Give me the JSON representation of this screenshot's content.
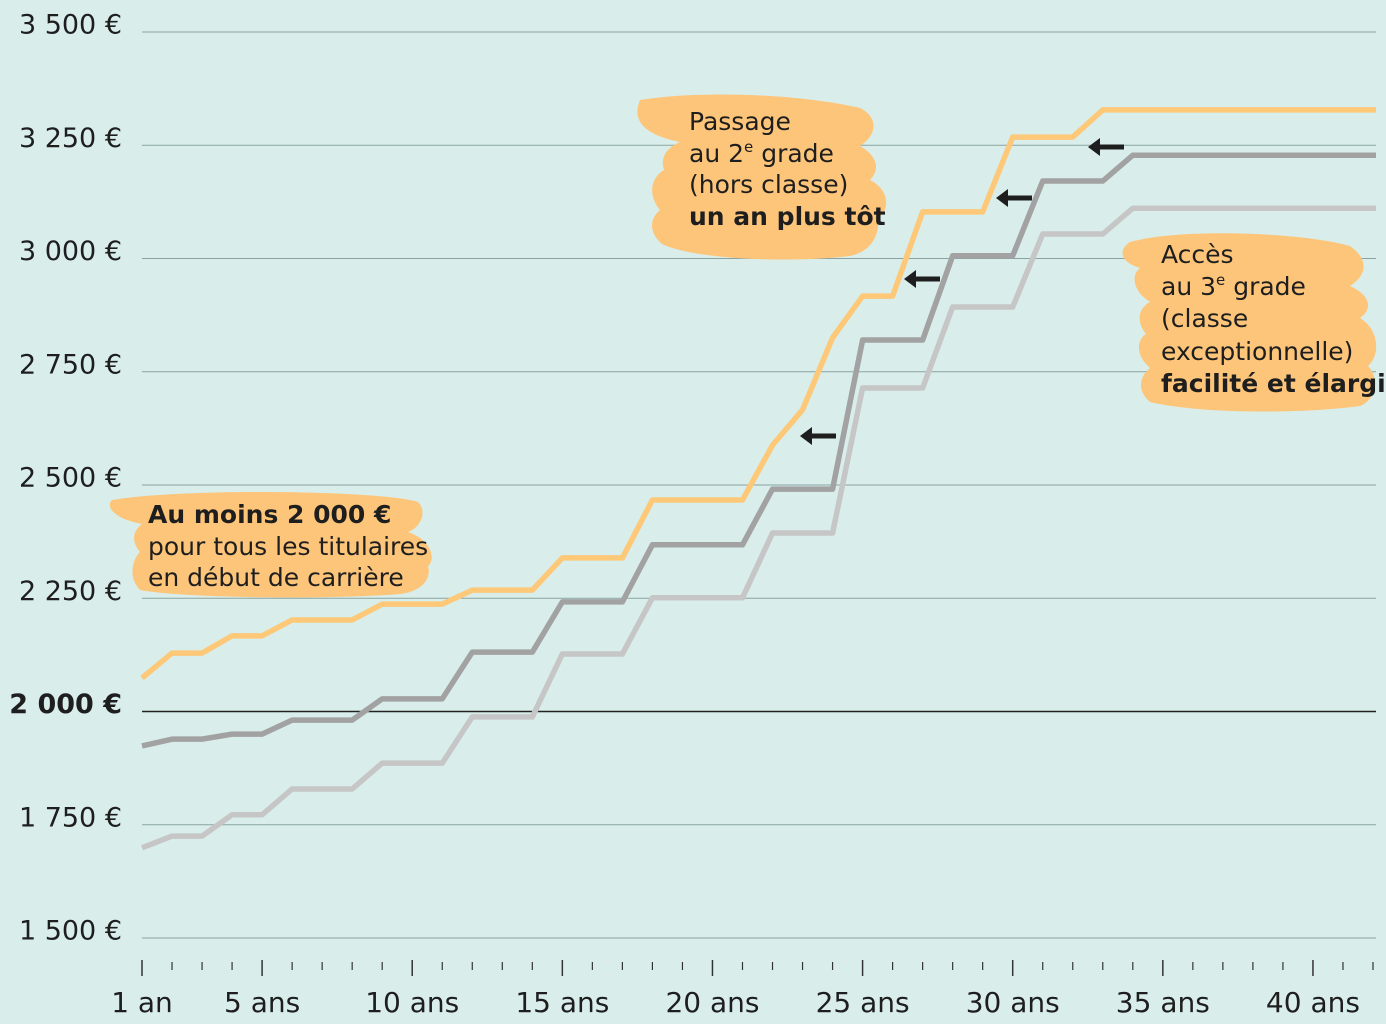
{
  "chart_data": {
    "type": "line",
    "ylim": [
      1500,
      3500
    ],
    "yticks": [
      {
        "value": 1500,
        "label": "1 500 €"
      },
      {
        "value": 1750,
        "label": "1 750 €"
      },
      {
        "value": 2000,
        "label": "2 000 €",
        "bold": true
      },
      {
        "value": 2250,
        "label": "2 250 €"
      },
      {
        "value": 2500,
        "label": "2 500 €"
      },
      {
        "value": 2750,
        "label": "2 750 €"
      },
      {
        "value": 3000,
        "label": "3 000 €"
      },
      {
        "value": 3250,
        "label": "3 250 €"
      },
      {
        "value": 3500,
        "label": "3 500 €"
      }
    ],
    "xlim": [
      1,
      42.1
    ],
    "xticks": [
      {
        "value": 1,
        "label": "1 an"
      },
      {
        "value": 5,
        "label": "5 ans"
      },
      {
        "value": 10,
        "label": "10 ans"
      },
      {
        "value": 15,
        "label": "15 ans"
      },
      {
        "value": 20,
        "label": "20 ans"
      },
      {
        "value": 25,
        "label": "25 ans"
      },
      {
        "value": 30,
        "label": "30 ans"
      },
      {
        "value": 35,
        "label": "35 ans"
      },
      {
        "value": 40,
        "label": "40 ans"
      }
    ],
    "xminorticks": [
      2,
      3,
      4,
      6,
      7,
      8,
      9,
      11,
      12,
      13,
      14,
      16,
      17,
      18,
      19,
      21,
      22,
      23,
      24,
      26,
      27,
      28,
      29,
      31,
      32,
      33,
      34,
      36,
      37,
      38,
      39,
      41,
      42
    ],
    "grid": true,
    "series": [
      {
        "color": "#fdc878",
        "x": [
          1,
          2,
          3,
          4,
          5,
          6,
          8,
          9,
          11,
          12,
          14,
          15,
          17,
          18,
          21,
          22,
          23,
          24,
          25,
          26,
          27,
          29,
          30,
          32,
          33,
          42.1
        ],
        "values": [
          2074,
          2129,
          2129,
          2167,
          2167,
          2202,
          2202,
          2237,
          2237,
          2268,
          2268,
          2339,
          2339,
          2467,
          2467,
          2588,
          2666,
          2825,
          2917,
          2917,
          3103,
          3103,
          3268,
          3268,
          3328,
          3328
        ]
      },
      {
        "color": "#a2a2a2",
        "x": [
          1,
          2,
          3,
          4,
          5,
          6,
          8,
          9,
          11,
          12,
          14,
          15,
          17,
          18,
          21,
          22,
          24,
          25,
          27,
          28,
          30,
          31,
          33,
          34,
          42.1
        ],
        "values": [
          1924,
          1939,
          1939,
          1950,
          1950,
          1981,
          1981,
          2028,
          2028,
          2131,
          2131,
          2242,
          2242,
          2368,
          2368,
          2491,
          2491,
          2820,
          2820,
          3006,
          3006,
          3171,
          3171,
          3228,
          3228
        ]
      },
      {
        "color": "#c6c6c6",
        "x": [
          1,
          2,
          3,
          4,
          5,
          6,
          8,
          9,
          11,
          12,
          14,
          15,
          17,
          18,
          21,
          22,
          24,
          25,
          27,
          28,
          30,
          31,
          33,
          34,
          42.1
        ],
        "values": [
          1699,
          1725,
          1725,
          1772,
          1772,
          1829,
          1829,
          1886,
          1886,
          1988,
          1988,
          2127,
          2127,
          2251,
          2251,
          2394,
          2394,
          2714,
          2714,
          2893,
          2893,
          3054,
          3054,
          3111,
          3111
        ]
      }
    ],
    "annotations": [
      {
        "lines": [
          "Au moins 2 000 €",
          "pour tous les titulaires",
          "en début de carrière"
        ]
      },
      {
        "lines": [
          "Passage",
          "au 2",
          "e",
          " grade",
          "(hors classe)",
          "un an plus tôt"
        ]
      },
      {
        "lines": [
          "Accès",
          "au 3",
          "e",
          " grade",
          "(classe",
          "exceptionnelle)",
          "facilité et élargi"
        ]
      }
    ]
  }
}
